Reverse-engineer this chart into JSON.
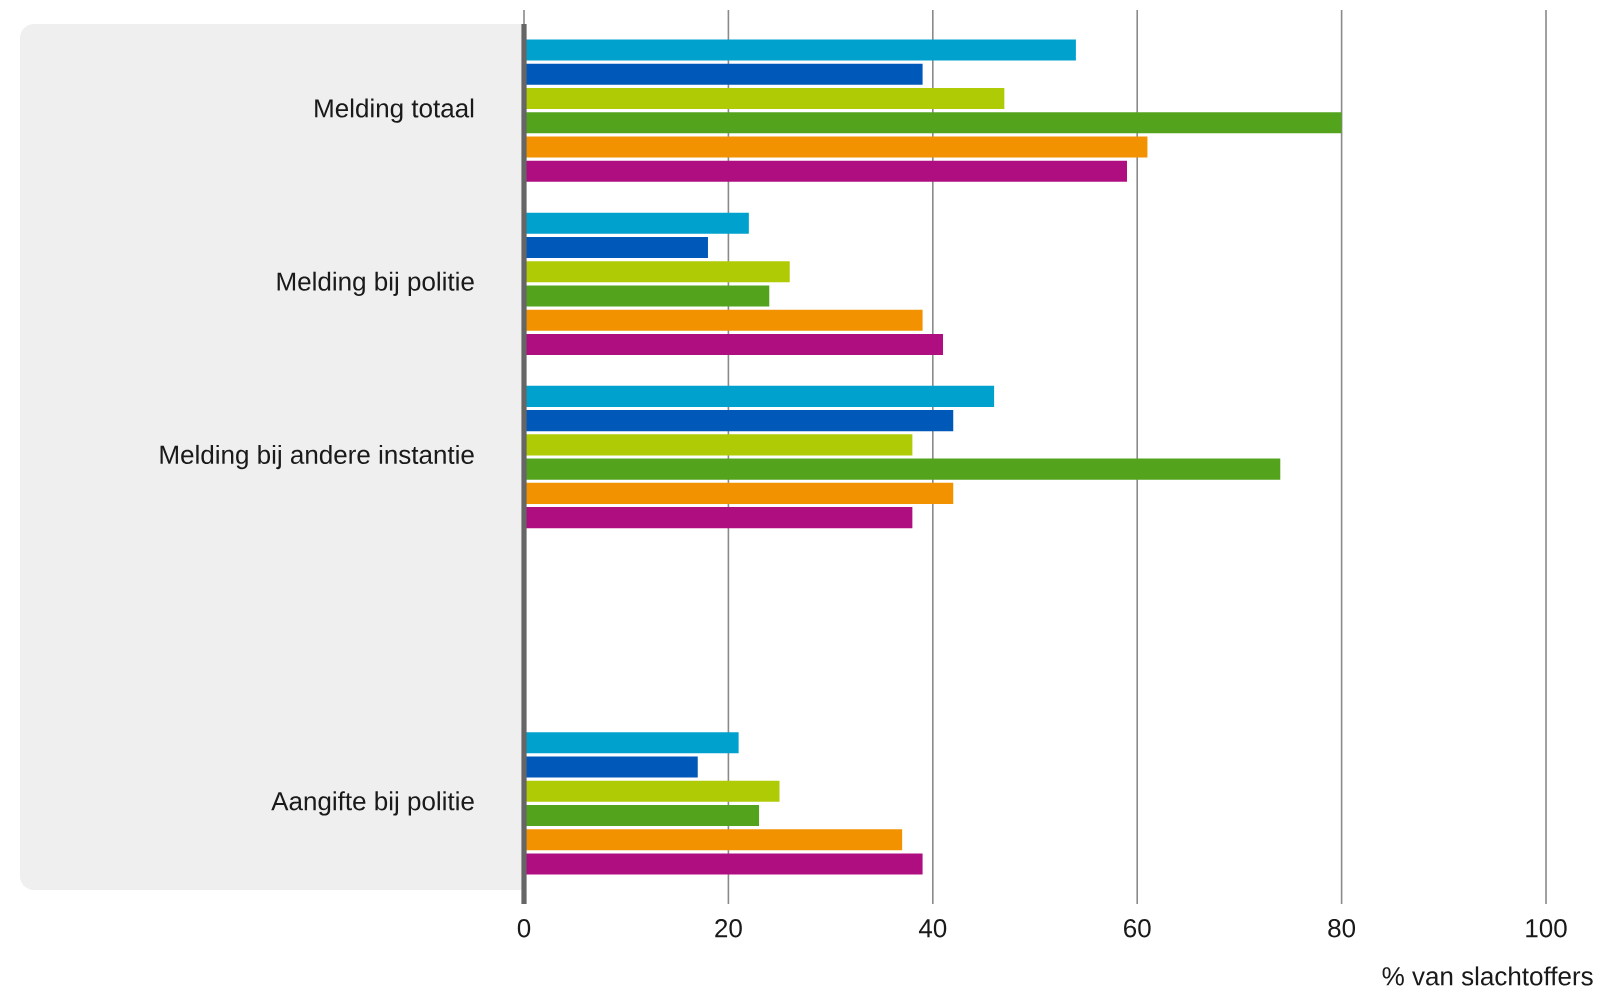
{
  "chart_data": {
    "type": "bar",
    "orientation": "horizontal",
    "categories": [
      "Melding totaal",
      "Melding bij politie",
      "Melding bij andere instantie",
      null,
      "Aangifte bij politie"
    ],
    "series": [
      {
        "color": "#00a1cd",
        "values": [
          54,
          22,
          46,
          null,
          21
        ]
      },
      {
        "color": "#0058b8",
        "values": [
          39,
          18,
          42,
          null,
          17
        ]
      },
      {
        "color": "#afcb05",
        "values": [
          47,
          26,
          38,
          null,
          25
        ]
      },
      {
        "color": "#53a31d",
        "values": [
          80,
          24,
          74,
          null,
          23
        ]
      },
      {
        "color": "#f39200",
        "values": [
          61,
          39,
          42,
          null,
          37
        ]
      },
      {
        "color": "#af0e80",
        "values": [
          59,
          41,
          38,
          null,
          39
        ]
      }
    ],
    "xlabel": "% van slachtoffers",
    "xlim": [
      0,
      100
    ],
    "xticks": [
      0,
      20,
      40,
      60,
      80,
      100
    ],
    "grid": "x"
  }
}
